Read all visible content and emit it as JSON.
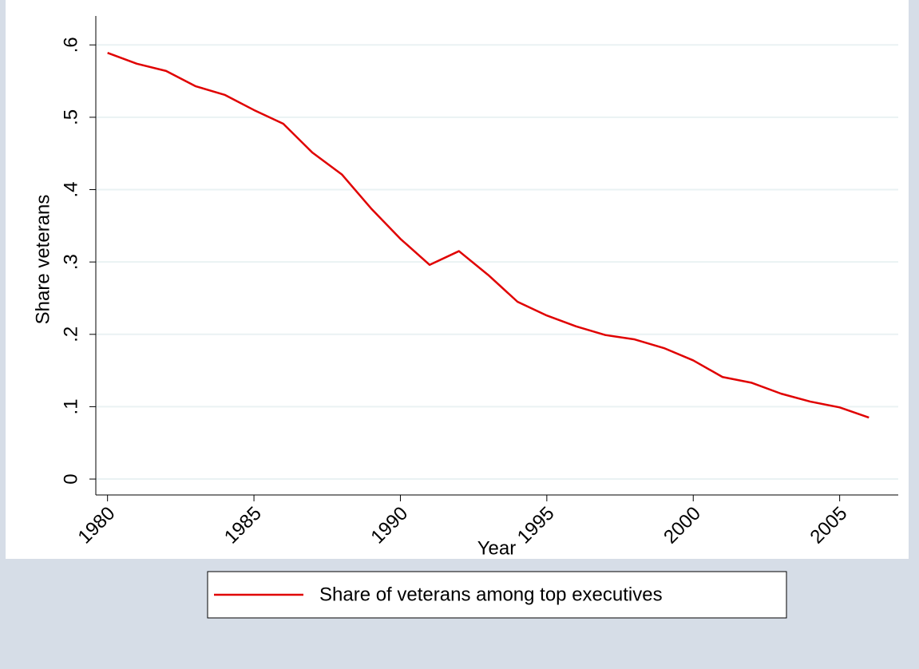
{
  "chart_data": {
    "type": "line",
    "x_label": "Year",
    "y_label": "Share veterans",
    "x": [
      1980,
      1981,
      1982,
      1983,
      1984,
      1985,
      1986,
      1987,
      1988,
      1989,
      1990,
      1991,
      1992,
      1993,
      1994,
      1995,
      1996,
      1997,
      1998,
      1999,
      2000,
      2001,
      2002,
      2003,
      2004,
      2005,
      2006
    ],
    "series": [
      {
        "name": "Share of veterans among top executives",
        "color": "#e00000",
        "values": [
          0.589,
          0.574,
          0.564,
          0.543,
          0.531,
          0.51,
          0.491,
          0.451,
          0.421,
          0.374,
          0.332,
          0.296,
          0.315,
          0.282,
          0.245,
          0.226,
          0.211,
          0.199,
          0.193,
          0.181,
          0.164,
          0.141,
          0.133,
          0.118,
          0.107,
          0.099,
          0.085
        ]
      }
    ],
    "xlim": [
      1979.6,
      2007.0
    ],
    "ylim": [
      -0.022,
      0.64
    ],
    "xticks": [
      1980,
      1985,
      1990,
      1995,
      2000,
      2005
    ],
    "yticks": [
      0,
      {
        "value": 0.1,
        "label": ".1"
      },
      {
        "value": 0.2,
        "label": ".2"
      },
      {
        "value": 0.3,
        "label": ".3"
      },
      {
        "value": 0.4,
        "label": ".4"
      },
      {
        "value": 0.5,
        "label": ".5"
      },
      {
        "value": 0.6,
        "label": ".6"
      }
    ],
    "grid": true
  }
}
